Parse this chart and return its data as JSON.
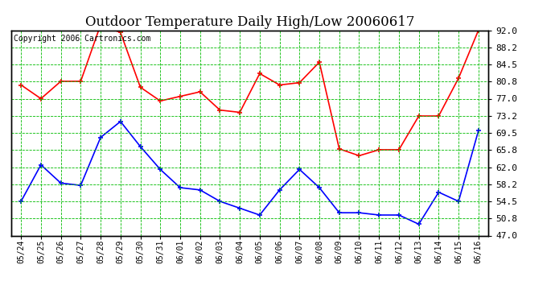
{
  "title": "Outdoor Temperature Daily High/Low 20060617",
  "copyright": "Copyright 2006 Cartronics.com",
  "dates": [
    "05/24",
    "05/25",
    "05/26",
    "05/27",
    "05/28",
    "05/29",
    "05/30",
    "05/31",
    "06/01",
    "06/02",
    "06/03",
    "06/04",
    "06/05",
    "06/06",
    "06/07",
    "06/08",
    "06/09",
    "06/10",
    "06/11",
    "06/12",
    "06/13",
    "06/14",
    "06/15",
    "06/16"
  ],
  "high": [
    80.0,
    77.0,
    80.8,
    80.8,
    93.2,
    91.5,
    79.5,
    76.5,
    77.5,
    78.5,
    74.5,
    74.0,
    82.5,
    80.0,
    80.5,
    85.0,
    66.0,
    64.5,
    65.8,
    65.8,
    73.2,
    73.2,
    81.5,
    92.0
  ],
  "low": [
    54.5,
    62.5,
    58.5,
    58.0,
    68.5,
    72.0,
    66.5,
    61.5,
    57.5,
    57.0,
    54.5,
    53.0,
    51.5,
    57.0,
    61.5,
    57.5,
    52.0,
    52.0,
    51.5,
    51.5,
    49.5,
    56.5,
    54.5,
    70.0
  ],
  "ylim_min": 47.0,
  "ylim_max": 92.0,
  "yticks": [
    47.0,
    50.8,
    54.5,
    58.2,
    62.0,
    65.8,
    69.5,
    73.2,
    77.0,
    80.8,
    84.5,
    88.2,
    92.0
  ],
  "high_color": "#ff0000",
  "low_color": "#0000ff",
  "grid_color": "#00bb00",
  "background_color": "#ffffff",
  "title_fontsize": 12,
  "copyright_fontsize": 7
}
